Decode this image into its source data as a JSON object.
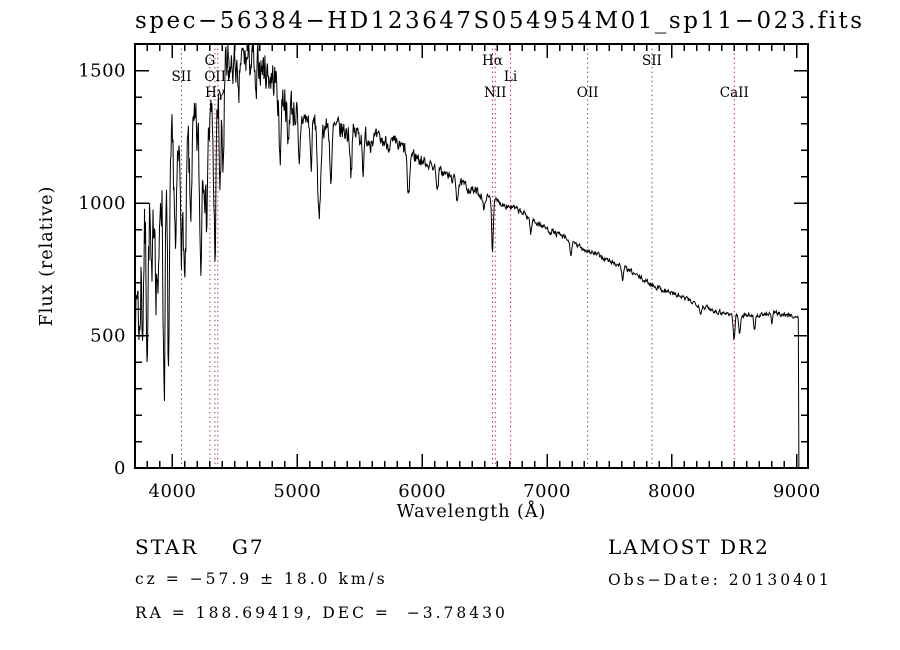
{
  "page_title": "spec−56384−HD123647S054954M01_sp11−023.fits",
  "annotations": {
    "class_line": "STAR    G7",
    "cz_line": "cz = −57.9 ± 18.0 km/s",
    "radec_line": "RA = 188.69419, DEC =  −3.78430",
    "survey": "LAMOST DR2",
    "obs_date_line": "Obs−Date: 20130401"
  },
  "chart_data": {
    "type": "line",
    "title": "spec−56384−HD123647S054954M01_sp11−023.fits",
    "xlabel": "Wavelength (Å)",
    "ylabel": "Flux (relative)",
    "xlim": [
      3700,
      9090
    ],
    "ylim": [
      0,
      1600
    ],
    "xticks": [
      4000,
      5000,
      6000,
      7000,
      8000,
      9000
    ],
    "yticks": [
      0,
      500,
      1000,
      1500
    ],
    "x_minor_step": 100,
    "y_minor_step": 100,
    "grid": false,
    "legend": "none",
    "line_color": "#000000",
    "marker_line_color": "#a83232",
    "spectral_lines": [
      {
        "label": "SII",
        "wavelength": 4072,
        "row": 2
      },
      {
        "label": "G",
        "wavelength": 4300,
        "row": 1
      },
      {
        "label": "Hγ",
        "wavelength": 4340,
        "row": 3
      },
      {
        "label": "OIII",
        "wavelength": 4363,
        "row": 2
      },
      {
        "label": "Hα",
        "wavelength": 6563,
        "row": 1
      },
      {
        "label": "NII",
        "wavelength": 6585,
        "row": 3
      },
      {
        "label": "Li",
        "wavelength": 6708,
        "row": 2
      },
      {
        "label": "OII",
        "wavelength": 7325,
        "row": 3
      },
      {
        "label": "SII",
        "wavelength": 7840,
        "row": 1
      },
      {
        "label": "CaII",
        "wavelength": 8500,
        "row": 3
      }
    ],
    "spectrum": {
      "step": 4,
      "range": [
        3700,
        9015
      ],
      "seed": 7,
      "clip_max": 1598,
      "end_drop": true,
      "continuum": [
        [
          3700,
          850
        ],
        [
          3740,
          880
        ],
        [
          3780,
          910
        ],
        [
          3820,
          990
        ],
        [
          3860,
          1060
        ],
        [
          3900,
          1120
        ],
        [
          3950,
          1170
        ],
        [
          4000,
          1120
        ],
        [
          4050,
          1140
        ],
        [
          4100,
          1180
        ],
        [
          4150,
          1230
        ],
        [
          4200,
          1230
        ],
        [
          4250,
          1200
        ],
        [
          4300,
          1280
        ],
        [
          4350,
          1340
        ],
        [
          4400,
          1410
        ],
        [
          4450,
          1490
        ],
        [
          4500,
          1525
        ],
        [
          4560,
          1540
        ],
        [
          4620,
          1540
        ],
        [
          4680,
          1530
        ],
        [
          4740,
          1505
        ],
        [
          4800,
          1470
        ],
        [
          4860,
          1440
        ],
        [
          4920,
          1390
        ],
        [
          4980,
          1350
        ],
        [
          5050,
          1320
        ],
        [
          5120,
          1305
        ],
        [
          5200,
          1290
        ],
        [
          5300,
          1280
        ],
        [
          5400,
          1268
        ],
        [
          5500,
          1258
        ],
        [
          5600,
          1246
        ],
        [
          5700,
          1230
        ],
        [
          5800,
          1215
        ],
        [
          5900,
          1190
        ],
        [
          6000,
          1160
        ],
        [
          6100,
          1135
        ],
        [
          6200,
          1105
        ],
        [
          6300,
          1075
        ],
        [
          6400,
          1048
        ],
        [
          6500,
          1028
        ],
        [
          6600,
          1005
        ],
        [
          6700,
          988
        ],
        [
          6800,
          963
        ],
        [
          6900,
          932
        ],
        [
          7000,
          902
        ],
        [
          7100,
          878
        ],
        [
          7200,
          850
        ],
        [
          7300,
          825
        ],
        [
          7400,
          805
        ],
        [
          7500,
          780
        ],
        [
          7600,
          762
        ],
        [
          7700,
          732
        ],
        [
          7800,
          702
        ],
        [
          7900,
          678
        ],
        [
          8000,
          660
        ],
        [
          8100,
          640
        ],
        [
          8200,
          620
        ],
        [
          8300,
          600
        ],
        [
          8400,
          587
        ],
        [
          8500,
          578
        ],
        [
          8600,
          577
        ],
        [
          8700,
          575
        ],
        [
          8800,
          585
        ],
        [
          8900,
          580
        ],
        [
          9000,
          570
        ],
        [
          9015,
          562
        ]
      ],
      "absorption_lines": [
        [
          3712,
          300,
          7
        ],
        [
          3735,
          400,
          7
        ],
        [
          3760,
          340,
          7
        ],
        [
          3798,
          400,
          8
        ],
        [
          3835,
          430,
          8
        ],
        [
          3870,
          300,
          7
        ],
        [
          3889,
          450,
          8
        ],
        [
          3933,
          790,
          9
        ],
        [
          3968,
          760,
          9
        ],
        [
          4026,
          340,
          7
        ],
        [
          4077,
          300,
          7
        ],
        [
          4101,
          520,
          9
        ],
        [
          4144,
          280,
          7
        ],
        [
          4226,
          430,
          8
        ],
        [
          4271,
          300,
          7
        ],
        [
          4340,
          480,
          9
        ],
        [
          4383,
          340,
          7
        ],
        [
          4405,
          270,
          7
        ],
        [
          4528,
          190,
          7
        ],
        [
          4668,
          170,
          7
        ],
        [
          4861,
          250,
          9
        ],
        [
          4925,
          190,
          7
        ],
        [
          5015,
          220,
          8
        ],
        [
          5110,
          170,
          7
        ],
        [
          5175,
          380,
          11
        ],
        [
          5270,
          210,
          8
        ],
        [
          5430,
          140,
          7
        ],
        [
          5530,
          130,
          7
        ],
        [
          5890,
          185,
          9
        ],
        [
          6122,
          85,
          7
        ],
        [
          6280,
          65,
          7
        ],
        [
          6495,
          65,
          7
        ],
        [
          6563,
          195,
          6
        ],
        [
          6870,
          55,
          7
        ],
        [
          7190,
          45,
          7
        ],
        [
          7605,
          50,
          7
        ],
        [
          8230,
          35,
          6
        ],
        [
          8498,
          92,
          7
        ],
        [
          8542,
          72,
          7
        ],
        [
          8662,
          52,
          6
        ],
        [
          8800,
          38,
          6
        ]
      ],
      "noise_regions": [
        [
          3700,
          4000,
          120
        ],
        [
          4000,
          4450,
          95
        ],
        [
          4450,
          5000,
          55
        ],
        [
          5000,
          5600,
          32
        ],
        [
          5600,
          6000,
          22
        ],
        [
          6000,
          6500,
          13
        ],
        [
          6500,
          7200,
          9
        ],
        [
          7200,
          8400,
          7
        ],
        [
          8400,
          9020,
          6
        ]
      ]
    }
  }
}
